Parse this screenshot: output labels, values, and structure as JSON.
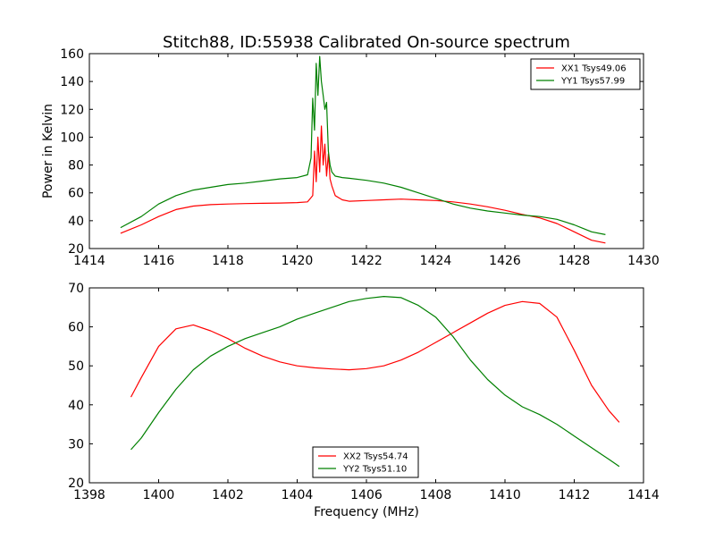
{
  "figure": {
    "title": "Stitch88, ID:55938 Calibrated On-source spectrum"
  },
  "chart_data": [
    {
      "type": "line",
      "title": "Stitch88, ID:55938 Calibrated On-source spectrum",
      "xlabel": "",
      "ylabel": "Power in Kelvin",
      "xlim": [
        1414,
        1430
      ],
      "ylim": [
        20,
        160
      ],
      "xticks": [
        "1414",
        "1416",
        "1418",
        "1420",
        "1422",
        "1424",
        "1426",
        "1428",
        "1430"
      ],
      "yticks": [
        "20",
        "40",
        "60",
        "80",
        "100",
        "120",
        "140",
        "160"
      ],
      "grid": false,
      "legend_position": "top-right",
      "series": [
        {
          "name": "XX1 Tsys49.06",
          "color": "#ff0000",
          "x": [
            1414.9,
            1415.5,
            1416.0,
            1416.5,
            1417.0,
            1417.5,
            1418.0,
            1418.5,
            1419.0,
            1419.5,
            1420.0,
            1420.3,
            1420.45,
            1420.5,
            1420.55,
            1420.6,
            1420.65,
            1420.7,
            1420.75,
            1420.8,
            1420.85,
            1420.9,
            1420.95,
            1421.0,
            1421.1,
            1421.3,
            1421.5,
            1422.0,
            1422.5,
            1423.0,
            1423.5,
            1424.0,
            1424.5,
            1425.0,
            1425.5,
            1426.0,
            1426.5,
            1427.0,
            1427.5,
            1428.0,
            1428.5,
            1428.9
          ],
          "y": [
            31,
            37,
            43,
            48,
            50.5,
            51.5,
            52,
            52.3,
            52.5,
            52.7,
            53,
            53.5,
            58,
            90,
            68,
            100,
            75,
            108,
            80,
            95,
            72,
            88,
            70,
            65,
            58,
            55,
            54,
            54.5,
            55,
            55.5,
            55,
            54.5,
            53.5,
            52,
            50,
            47.5,
            44.5,
            42,
            38,
            32,
            26,
            24
          ]
        },
        {
          "name": "YY1 Tsys57.99",
          "color": "#008000",
          "x": [
            1414.9,
            1415.5,
            1416.0,
            1416.5,
            1417.0,
            1417.5,
            1418.0,
            1418.5,
            1419.0,
            1419.5,
            1420.0,
            1420.3,
            1420.4,
            1420.45,
            1420.5,
            1420.55,
            1420.6,
            1420.65,
            1420.7,
            1420.75,
            1420.8,
            1420.85,
            1420.9,
            1420.95,
            1421.0,
            1421.1,
            1421.3,
            1421.5,
            1422.0,
            1422.5,
            1423.0,
            1423.5,
            1424.0,
            1424.5,
            1425.0,
            1425.5,
            1426.0,
            1426.5,
            1427.0,
            1427.5,
            1428.0,
            1428.5,
            1428.9
          ],
          "y": [
            35,
            43,
            52,
            58,
            62,
            64,
            66,
            67,
            68.5,
            70,
            71,
            73,
            85,
            128,
            105,
            153,
            130,
            158,
            140,
            130,
            120,
            125,
            90,
            80,
            75,
            72,
            71,
            70.5,
            69,
            67,
            64,
            60,
            56,
            52,
            49,
            47,
            45.5,
            44,
            43,
            41,
            37,
            32,
            30
          ]
        }
      ]
    },
    {
      "type": "line",
      "title": "",
      "xlabel": "Frequency (MHz)",
      "ylabel": "",
      "xlim": [
        1398,
        1414
      ],
      "ylim": [
        20,
        70
      ],
      "xticks": [
        "1398",
        "1400",
        "1402",
        "1404",
        "1406",
        "1408",
        "1410",
        "1412",
        "1414"
      ],
      "yticks": [
        "20",
        "30",
        "40",
        "50",
        "60",
        "70"
      ],
      "grid": false,
      "legend_position": "bottom-center",
      "series": [
        {
          "name": "XX2 Tsys54.74",
          "color": "#ff0000",
          "x": [
            1399.2,
            1399.5,
            1400.0,
            1400.5,
            1401.0,
            1401.5,
            1402.0,
            1402.5,
            1403.0,
            1403.5,
            1404.0,
            1404.5,
            1405.0,
            1405.5,
            1406.0,
            1406.5,
            1407.0,
            1407.5,
            1408.0,
            1408.5,
            1409.0,
            1409.5,
            1410.0,
            1410.5,
            1411.0,
            1411.5,
            1412.0,
            1412.5,
            1413.0,
            1413.3
          ],
          "y": [
            42,
            47,
            55,
            59.5,
            60.5,
            59,
            57,
            54.5,
            52.5,
            51,
            50,
            49.5,
            49.2,
            49,
            49.3,
            50,
            51.5,
            53.5,
            56,
            58.5,
            61,
            63.5,
            65.5,
            66.5,
            66,
            62.5,
            54,
            45,
            38.5,
            35.5
          ]
        },
        {
          "name": "YY2 Tsys51.10",
          "color": "#008000",
          "x": [
            1399.2,
            1399.5,
            1400.0,
            1400.5,
            1401.0,
            1401.5,
            1402.0,
            1402.5,
            1403.0,
            1403.5,
            1404.0,
            1404.5,
            1405.0,
            1405.5,
            1406.0,
            1406.5,
            1407.0,
            1407.5,
            1408.0,
            1408.5,
            1409.0,
            1409.5,
            1410.0,
            1410.5,
            1411.0,
            1411.5,
            1412.0,
            1412.5,
            1413.0,
            1413.3
          ],
          "y": [
            28.5,
            31.5,
            38,
            44,
            49,
            52.5,
            55,
            57,
            58.5,
            60,
            62,
            63.5,
            65,
            66.5,
            67.3,
            67.8,
            67.5,
            65.5,
            62.5,
            57.5,
            51.5,
            46.5,
            42.5,
            39.5,
            37.5,
            35,
            32,
            29,
            26,
            24.2
          ]
        }
      ]
    }
  ]
}
